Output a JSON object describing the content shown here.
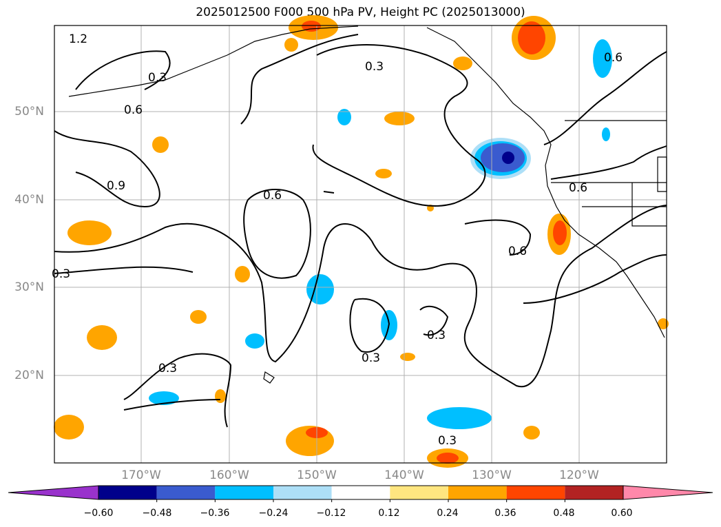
{
  "title": "2025012500 F000 500 hPa PV, Height PC (2025013000)",
  "lat_labels": [
    "50°N",
    "40°N",
    "30°N",
    "20°N"
  ],
  "lon_labels": [
    "170°W",
    "160°W",
    "150°W",
    "140°W",
    "130°W",
    "120°W"
  ],
  "contour_labels": [
    "1.2",
    "0.3",
    "0.6",
    "0.9",
    "0.6",
    "0.3",
    "0.3",
    "0.6",
    "0.6",
    "0.3",
    "0.3",
    "0.3",
    "0.3",
    "0.6"
  ],
  "colorbar": {
    "ticks": [
      "−0.60",
      "−0.48",
      "−0.36",
      "−0.24",
      "−0.12",
      "0.12",
      "0.24",
      "0.36",
      "0.48",
      "0.60"
    ],
    "colors": [
      "#9932CC",
      "#00008B",
      "#3A5BCF",
      "#00BFFF",
      "#ADDFF7",
      "#FFFFFF",
      "#FFE680",
      "#FFA500",
      "#FF4500",
      "#B22222",
      "#FF88AA"
    ]
  }
}
